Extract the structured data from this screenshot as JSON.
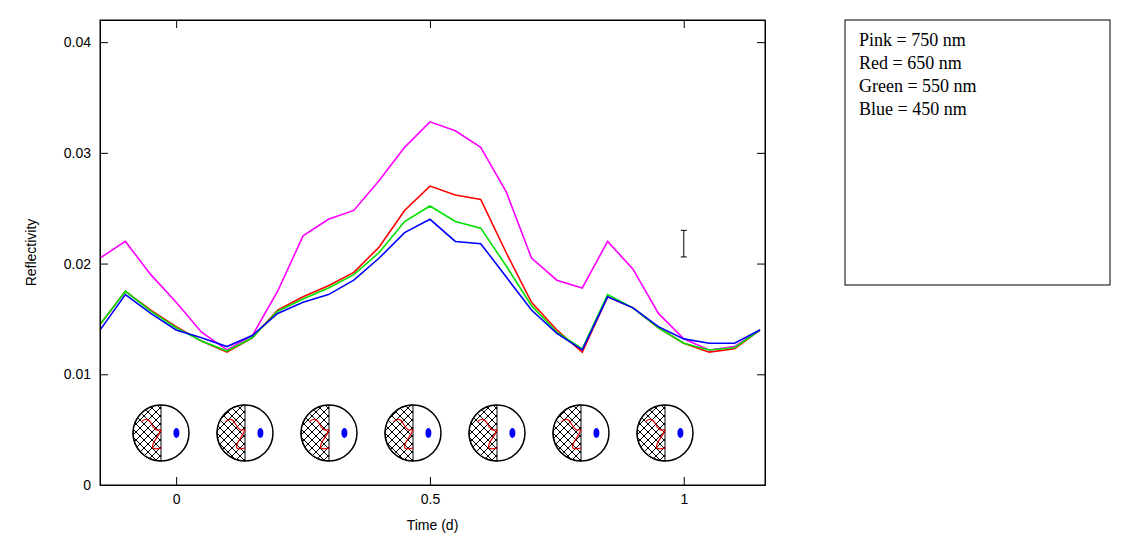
{
  "chart_data": {
    "type": "line",
    "x_label": "Time (d)",
    "y_label": "Reflectivity",
    "x": [
      -0.15,
      -0.1,
      -0.05,
      0,
      0.05,
      0.1,
      0.15,
      0.2,
      0.25,
      0.3,
      0.35,
      0.4,
      0.45,
      0.5,
      0.55,
      0.6,
      0.65,
      0.7,
      0.75,
      0.8,
      0.85,
      0.9,
      0.95,
      1,
      1.05,
      1.1,
      1.15
    ],
    "series": [
      {
        "name": "Pink = 750 nm",
        "color": "#ff00ff",
        "values": [
          0.0205,
          0.022,
          0.019,
          0.0165,
          0.0138,
          0.0122,
          0.0135,
          0.0175,
          0.0225,
          0.024,
          0.0248,
          0.0275,
          0.0305,
          0.0328,
          0.032,
          0.0305,
          0.0265,
          0.0205,
          0.0185,
          0.0178,
          0.022,
          0.0195,
          0.0155,
          0.0132,
          0.0122,
          0.0125,
          0.014
        ]
      },
      {
        "name": "Red = 650 nm",
        "color": "#ff0000",
        "values": [
          0.0145,
          0.0175,
          0.0158,
          0.0143,
          0.013,
          0.012,
          0.0133,
          0.0158,
          0.017,
          0.018,
          0.0192,
          0.0215,
          0.0248,
          0.027,
          0.0262,
          0.0258,
          0.021,
          0.0165,
          0.014,
          0.012,
          0.017,
          0.016,
          0.0142,
          0.0128,
          0.012,
          0.0123,
          0.014
        ]
      },
      {
        "name": "Green = 550 nm",
        "color": "#00e000",
        "values": [
          0.0145,
          0.0175,
          0.0157,
          0.0142,
          0.013,
          0.0121,
          0.0133,
          0.0157,
          0.0168,
          0.0178,
          0.019,
          0.021,
          0.0238,
          0.0252,
          0.0238,
          0.0232,
          0.0198,
          0.0162,
          0.0138,
          0.0123,
          0.0172,
          0.016,
          0.0142,
          0.0128,
          0.0122,
          0.0124,
          0.014
        ]
      },
      {
        "name": "Blue = 450 nm",
        "color": "#0000ff",
        "values": [
          0.014,
          0.0172,
          0.0155,
          0.014,
          0.0133,
          0.0125,
          0.0135,
          0.0155,
          0.0165,
          0.0172,
          0.0185,
          0.0205,
          0.0228,
          0.024,
          0.022,
          0.0218,
          0.0188,
          0.0158,
          0.0137,
          0.0122,
          0.017,
          0.016,
          0.0143,
          0.0132,
          0.0128,
          0.0128,
          0.014
        ]
      }
    ],
    "error_bar": {
      "x": 1,
      "y": 0.0218,
      "error": 0.0012
    },
    "xlim": [
      -0.15,
      1.16
    ],
    "ylim": [
      0,
      0.042
    ],
    "xticks": [
      0,
      0.5,
      1
    ],
    "yticks": [
      0,
      0.01,
      0.02,
      0.03,
      0.04
    ],
    "grid": false,
    "legend": "right"
  }
}
